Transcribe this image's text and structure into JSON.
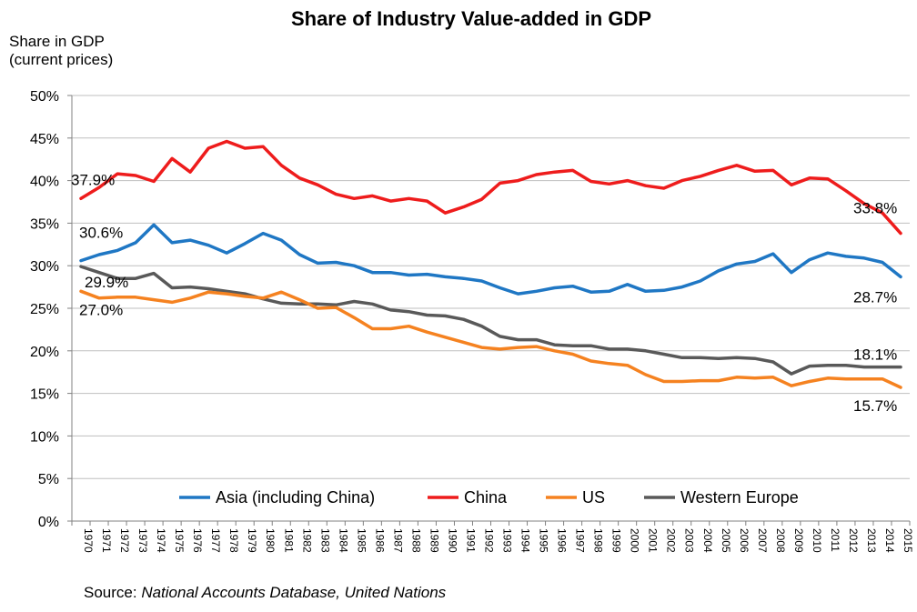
{
  "chart_data": {
    "type": "line",
    "title": "Share of Industry Value-added in GDP",
    "ylabel_lines": [
      "Share in GDP",
      "(current prices)"
    ],
    "xlabel": "",
    "ylim": [
      0,
      50
    ],
    "ytick_step": 5,
    "ytick_labels": [
      "0%",
      "5%",
      "10%",
      "15%",
      "20%",
      "25%",
      "30%",
      "35%",
      "40%",
      "45%",
      "50%"
    ],
    "grid": true,
    "legend_position": "bottom",
    "x": [
      "1970",
      "1971",
      "1972",
      "1973",
      "1974",
      "1975",
      "1976",
      "1977",
      "1978",
      "1979",
      "1980",
      "1981",
      "1982",
      "1983",
      "1984",
      "1985",
      "1986",
      "1987",
      "1988",
      "1989",
      "1990",
      "1991",
      "1992",
      "1993",
      "1994",
      "1995",
      "1996",
      "1997",
      "1998",
      "1999",
      "2000",
      "2001",
      "2002",
      "2003",
      "2004",
      "2005",
      "2006",
      "2007",
      "2008",
      "2009",
      "2010",
      "2011",
      "2012",
      "2013",
      "2014",
      "2015"
    ],
    "series": [
      {
        "name": "Asia (including China)",
        "color": "#1f77c4",
        "values": [
          30.6,
          31.3,
          31.8,
          32.7,
          34.8,
          32.7,
          33.0,
          32.4,
          31.5,
          32.6,
          33.8,
          33.0,
          31.3,
          30.3,
          30.4,
          30.0,
          29.2,
          29.2,
          28.9,
          29.0,
          28.7,
          28.5,
          28.2,
          27.4,
          26.7,
          27.0,
          27.4,
          27.6,
          26.9,
          27.0,
          27.8,
          27.0,
          27.1,
          27.5,
          28.2,
          29.4,
          30.2,
          30.5,
          31.4,
          29.2,
          30.7,
          31.5,
          31.1,
          30.9,
          30.4,
          28.7
        ]
      },
      {
        "name": "China",
        "color": "#ee1c1c",
        "values": [
          37.9,
          39.2,
          40.8,
          40.6,
          39.9,
          42.6,
          41.0,
          43.8,
          44.6,
          43.8,
          44.0,
          41.8,
          40.3,
          39.5,
          38.4,
          37.9,
          38.2,
          37.6,
          37.9,
          37.6,
          36.2,
          36.9,
          37.8,
          39.7,
          40.0,
          40.7,
          41.0,
          41.2,
          39.9,
          39.6,
          40.0,
          39.4,
          39.1,
          40.0,
          40.5,
          41.2,
          41.8,
          41.1,
          41.2,
          39.5,
          40.3,
          40.2,
          38.8,
          37.3,
          36.2,
          33.8
        ]
      },
      {
        "name": "US",
        "color": "#f58220",
        "values": [
          27.0,
          26.2,
          26.3,
          26.3,
          26.0,
          25.7,
          26.2,
          26.9,
          26.7,
          26.4,
          26.2,
          26.9,
          26.0,
          25.0,
          25.1,
          23.9,
          22.6,
          22.6,
          22.9,
          22.2,
          21.6,
          21.0,
          20.4,
          20.2,
          20.4,
          20.5,
          20.0,
          19.6,
          18.8,
          18.5,
          18.3,
          17.2,
          16.4,
          16.4,
          16.5,
          16.5,
          16.9,
          16.8,
          16.9,
          15.9,
          16.4,
          16.8,
          16.7,
          16.7,
          16.7,
          15.7
        ]
      },
      {
        "name": "Western Europe",
        "color": "#595959",
        "values": [
          29.9,
          29.2,
          28.5,
          28.5,
          29.1,
          27.4,
          27.5,
          27.3,
          27.0,
          26.7,
          26.1,
          25.6,
          25.5,
          25.5,
          25.4,
          25.8,
          25.5,
          24.8,
          24.6,
          24.2,
          24.1,
          23.7,
          22.9,
          21.7,
          21.3,
          21.3,
          20.7,
          20.6,
          20.6,
          20.2,
          20.2,
          20.0,
          19.6,
          19.2,
          19.2,
          19.1,
          19.2,
          19.1,
          18.7,
          17.3,
          18.2,
          18.3,
          18.3,
          18.1,
          18.1,
          18.1
        ]
      }
    ],
    "annotations": [
      {
        "text": "37.9%",
        "series": "China",
        "year": "1970"
      },
      {
        "text": "33.8%",
        "series": "China",
        "year": "2015"
      },
      {
        "text": "30.6%",
        "series": "Asia (including China)",
        "year": "1970"
      },
      {
        "text": "28.7%",
        "series": "Asia (including China)",
        "year": "2015"
      },
      {
        "text": "29.9%",
        "series": "Western Europe",
        "year": "1970"
      },
      {
        "text": "18.1%",
        "series": "Western Europe",
        "year": "2015"
      },
      {
        "text": "27.0%",
        "series": "US",
        "year": "1970"
      },
      {
        "text": "15.7%",
        "series": "US",
        "year": "2015"
      }
    ]
  },
  "source": {
    "prefix": "Source: ",
    "text": "National Accounts Database, United Nations"
  }
}
